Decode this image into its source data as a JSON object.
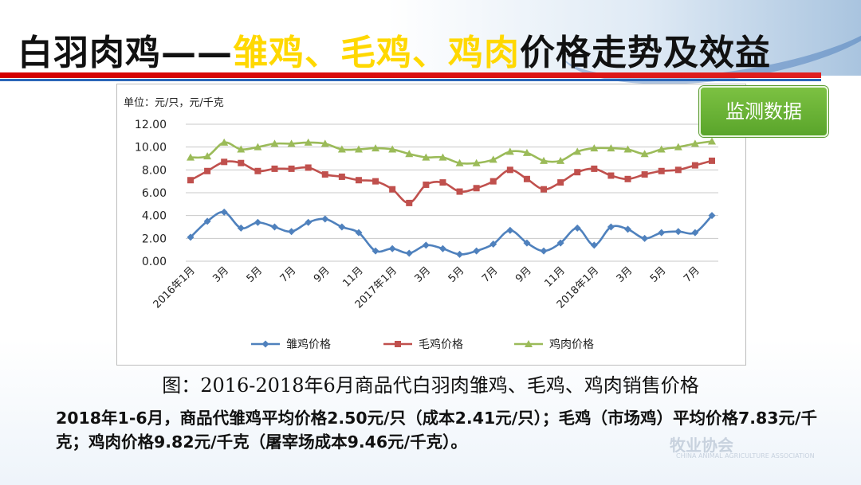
{
  "slide": {
    "title_part1": "白羽肉鸡——",
    "title_part2": "雏鸡、毛鸡、鸡肉",
    "title_part3": "价格走势及效益",
    "badge": "监测数据",
    "caption": "图：2016-2018年6月商品代白羽肉雏鸡、毛鸡、鸡肉销售价格",
    "note": "2018年1-6月，商品代雏鸡平均价格2.50元/只（成本2.41元/只）；毛鸡（市场鸡）平均价格7.83元/千克；鸡肉价格9.82元/千克（屠宰场成本9.46元/千克）。",
    "watermark": "牧业协会",
    "watermark_sub": "CHINA ANIMAL AGRICULTURE ASSOCIATION"
  },
  "colors": {
    "accent_red": "#d40000",
    "accent_yellow": "#ffd800",
    "badge_green": "#6db33a",
    "series_blue": "#4f81bd",
    "series_red": "#c0504d",
    "series_green": "#9bbb59"
  },
  "chart_data": {
    "type": "line",
    "unit_label": "单位：元/只，元/千克",
    "ylim": [
      0,
      12
    ],
    "y_ticks": [
      "0.00",
      "2.00",
      "4.00",
      "6.00",
      "8.00",
      "10.00",
      "12.00"
    ],
    "grid": "horizontal",
    "legend_position": "bottom",
    "x_tick_labels": [
      "2016年1月",
      "3月",
      "5月",
      "7月",
      "9月",
      "11月",
      "2017年1月",
      "3月",
      "5月",
      "7月",
      "9月",
      "11月",
      "2018年1月",
      "3月",
      "5月",
      "7月"
    ],
    "x_tick_every": 2,
    "series": [
      {
        "name": "雏鸡价格",
        "marker": "diamond",
        "color": "#4f81bd",
        "values": [
          2.1,
          3.5,
          4.3,
          2.9,
          3.4,
          3.0,
          2.6,
          3.4,
          3.7,
          3.0,
          2.5,
          0.9,
          1.1,
          0.7,
          1.4,
          1.1,
          0.6,
          0.9,
          1.5,
          2.7,
          1.6,
          0.9,
          1.6,
          2.9,
          1.4,
          3.0,
          2.8,
          2.0,
          2.5,
          2.6,
          2.5,
          4.0
        ]
      },
      {
        "name": "毛鸡价格",
        "marker": "square",
        "color": "#c0504d",
        "values": [
          7.1,
          7.9,
          8.7,
          8.6,
          7.9,
          8.1,
          8.1,
          8.2,
          7.6,
          7.4,
          7.1,
          7.0,
          6.3,
          5.1,
          6.7,
          6.9,
          6.1,
          6.4,
          7.0,
          8.0,
          7.2,
          6.3,
          6.9,
          7.8,
          8.1,
          7.5,
          7.2,
          7.6,
          7.9,
          8.0,
          8.4,
          8.8
        ]
      },
      {
        "name": "鸡肉价格",
        "marker": "triangle",
        "color": "#9bbb59",
        "values": [
          9.1,
          9.2,
          10.4,
          9.8,
          10.0,
          10.3,
          10.3,
          10.4,
          10.3,
          9.8,
          9.8,
          9.9,
          9.8,
          9.4,
          9.1,
          9.1,
          8.6,
          8.6,
          8.9,
          9.6,
          9.5,
          8.8,
          8.8,
          9.6,
          9.9,
          9.9,
          9.8,
          9.4,
          9.8,
          10.0,
          10.3,
          10.5
        ]
      }
    ]
  }
}
